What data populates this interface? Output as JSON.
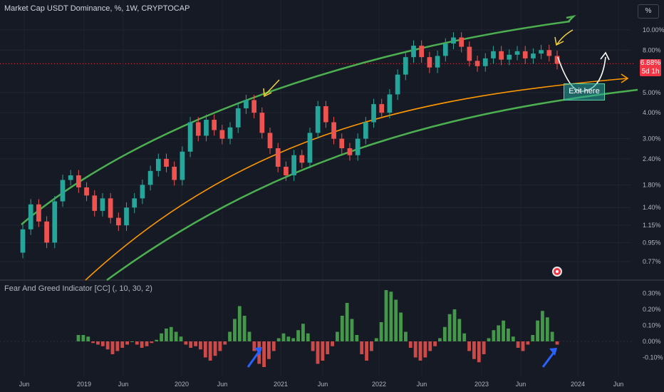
{
  "header": {
    "title": "Market Cap USDT Dominance, %, 1W, CRYPTOCAP",
    "unit_button": "%"
  },
  "last_price": {
    "value": "6.88%",
    "countdown": "5d 1h"
  },
  "annotation": {
    "exit_label": "Exit here"
  },
  "colors": {
    "up": "#26a69a",
    "down": "#ef5350",
    "bullish_channel": "#4caf50",
    "midline": "#ff9800",
    "hist_up": "#4caf50",
    "hist_down": "#ef5350",
    "arrow": "#2962ff",
    "background": "#161a25"
  },
  "chart_data": [
    {
      "type": "candlestick",
      "title": "Market Cap USDT Dominance, %, 1W, CRYPTOCAP",
      "y_scale": "log",
      "y_ticks": [
        "10.00%",
        "8.00%",
        "5.00%",
        "4.00%",
        "3.00%",
        "2.40%",
        "1.80%",
        "1.40%",
        "1.15%",
        "0.95%",
        "0.77%"
      ],
      "x_ticks": [
        "Jun",
        "2019",
        "Jun",
        "2020",
        "Jun",
        "2021",
        "Jun",
        "2022",
        "Jun",
        "2023",
        "Jun",
        "2024",
        "Jun"
      ],
      "last_value": 6.88,
      "series": [
        {
          "values": [
            [
              0.85,
              1.1
            ],
            [
              1.1,
              1.45
            ],
            [
              1.45,
              1.2
            ],
            [
              1.2,
              0.95
            ],
            [
              0.95,
              1.5
            ],
            [
              1.5,
              1.9
            ],
            [
              1.9,
              2.0
            ],
            [
              2.0,
              1.75
            ],
            [
              1.75,
              1.6
            ],
            [
              1.6,
              1.35
            ],
            [
              1.35,
              1.55
            ],
            [
              1.55,
              1.25
            ],
            [
              1.25,
              1.15
            ],
            [
              1.15,
              1.4
            ],
            [
              1.4,
              1.55
            ],
            [
              1.55,
              1.8
            ],
            [
              1.8,
              2.1
            ],
            [
              2.1,
              2.4
            ],
            [
              2.4,
              2.2
            ],
            [
              2.2,
              1.9
            ],
            [
              1.9,
              2.6
            ],
            [
              2.6,
              3.6
            ],
            [
              3.6,
              3.1
            ],
            [
              3.1,
              3.7
            ],
            [
              3.7,
              3.3
            ],
            [
              3.3,
              3.0
            ],
            [
              3.0,
              3.4
            ],
            [
              3.4,
              4.2
            ],
            [
              4.2,
              4.6
            ],
            [
              4.6,
              4.0
            ],
            [
              4.0,
              3.2
            ],
            [
              3.2,
              2.7
            ],
            [
              2.7,
              2.2
            ],
            [
              2.2,
              2.0
            ],
            [
              2.0,
              2.5
            ],
            [
              2.5,
              2.3
            ],
            [
              2.3,
              3.2
            ],
            [
              3.2,
              4.3
            ],
            [
              4.3,
              3.6
            ],
            [
              3.6,
              3.0
            ],
            [
              3.0,
              2.7
            ],
            [
              2.7,
              2.5
            ],
            [
              2.5,
              3.0
            ],
            [
              3.0,
              3.6
            ],
            [
              3.6,
              4.4
            ],
            [
              4.4,
              4.0
            ],
            [
              4.0,
              4.9
            ],
            [
              4.9,
              6.1
            ],
            [
              6.1,
              7.4
            ],
            [
              7.4,
              8.4
            ],
            [
              8.4,
              7.4
            ],
            [
              7.4,
              6.6
            ],
            [
              6.6,
              7.5
            ],
            [
              7.5,
              8.6
            ],
            [
              8.6,
              9.2
            ],
            [
              9.2,
              8.3
            ],
            [
              8.3,
              7.1
            ],
            [
              7.1,
              6.7
            ],
            [
              6.7,
              7.3
            ],
            [
              7.3,
              7.9
            ],
            [
              7.9,
              7.2
            ],
            [
              7.2,
              7.6
            ],
            [
              7.6,
              7.9
            ],
            [
              7.9,
              7.3
            ],
            [
              7.3,
              7.7
            ],
            [
              7.7,
              8.0
            ],
            [
              8.0,
              7.5
            ],
            [
              7.5,
              6.88
            ]
          ]
        }
      ],
      "channel": {
        "upper_label": "",
        "lower_label": ""
      }
    },
    {
      "type": "bar",
      "title": "Fear And Greed Indicator [CC] (, 10, 30, 2)",
      "y_ticks": [
        "0.30%",
        "0.20%",
        "0.10%",
        "0.00%",
        "-0.10%"
      ],
      "ylim": [
        -0.15,
        0.35
      ],
      "series": [
        {
          "values": [
            0.04,
            0.04,
            0.03,
            -0.01,
            -0.02,
            -0.03,
            -0.05,
            -0.08,
            -0.06,
            -0.04,
            -0.02,
            0.0,
            -0.02,
            -0.04,
            -0.03,
            -0.01,
            0.01,
            0.05,
            0.08,
            0.09,
            0.06,
            0.03,
            -0.02,
            -0.04,
            -0.03,
            -0.05,
            -0.1,
            -0.12,
            -0.09,
            -0.06,
            -0.02,
            0.06,
            0.14,
            0.22,
            0.16,
            0.06,
            -0.06,
            -0.14,
            -0.16,
            -0.11,
            -0.06,
            0.02,
            0.05,
            0.03,
            0.02,
            0.07,
            0.11,
            0.05,
            -0.06,
            -0.14,
            -0.12,
            -0.08,
            -0.03,
            0.06,
            0.16,
            0.24,
            0.14,
            0.04,
            -0.08,
            -0.12,
            -0.06,
            0.02,
            0.12,
            0.32,
            0.31,
            0.26,
            0.18,
            0.06,
            -0.04,
            -0.1,
            -0.12,
            -0.1,
            -0.06,
            -0.03,
            0.02,
            0.09,
            0.17,
            0.2,
            0.14,
            0.05,
            -0.06,
            -0.11,
            -0.13,
            -0.08,
            0.02,
            0.07,
            0.1,
            0.13,
            0.08,
            0.03,
            -0.04,
            -0.06,
            -0.02,
            0.04,
            0.13,
            0.19,
            0.15,
            0.06,
            -0.02
          ]
        }
      ]
    }
  ]
}
